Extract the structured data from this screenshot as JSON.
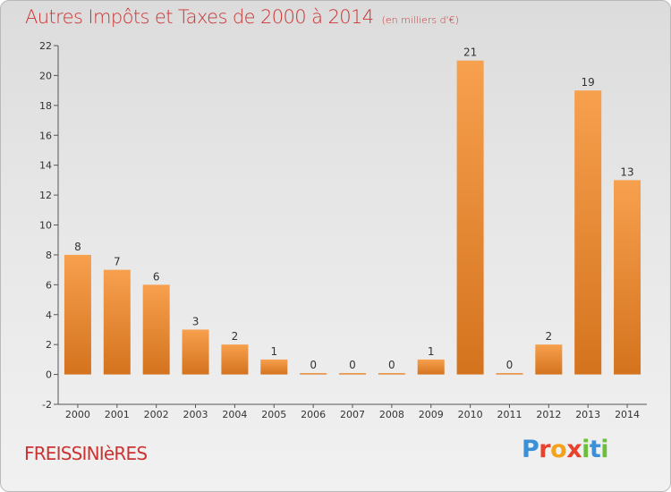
{
  "header": {
    "title": "Autres Impôts et Taxes de 2000 à 2014",
    "unit": "(en milliers d'€)"
  },
  "footer": {
    "commune": "FREISSINIèRES",
    "logo_letters": [
      {
        "char": "P",
        "color": "#3a8fd6"
      },
      {
        "char": "r",
        "color": "#e8412c"
      },
      {
        "char": "o",
        "color": "#f5a21a"
      },
      {
        "char": "x",
        "color": "#e8412c"
      },
      {
        "char": "i",
        "color": "#6cbf3d"
      },
      {
        "char": "t",
        "color": "#3a8fd6"
      },
      {
        "char": "i",
        "color": "#6cbf3d"
      }
    ]
  },
  "chart_data": {
    "type": "bar",
    "title": "Autres Impôts et Taxes de 2000 à 2014",
    "subtitle": "(en milliers d'€)",
    "xlabel": "",
    "ylabel": "",
    "categories": [
      "2000",
      "2001",
      "2002",
      "2003",
      "2004",
      "2005",
      "2006",
      "2007",
      "2008",
      "2009",
      "2010",
      "2011",
      "2012",
      "2013",
      "2014"
    ],
    "values": [
      8,
      7,
      6,
      3,
      2,
      1,
      0,
      0,
      0,
      1,
      21,
      0,
      2,
      19,
      13
    ],
    "data_labels": [
      "8",
      "7",
      "6",
      "3",
      "2",
      "1",
      "0",
      "0",
      "0",
      "1",
      "21",
      "0",
      "2",
      "19",
      "13"
    ],
    "y_ticks": [
      -2,
      0,
      2,
      4,
      6,
      8,
      10,
      12,
      14,
      16,
      18,
      20,
      22
    ],
    "ylim": [
      -2,
      22
    ],
    "grid": false,
    "legend": "none",
    "colors": {
      "bar_light": "#f7a04e",
      "bar_dark": "#d4731e",
      "text": "#333333",
      "title": "#cc3333"
    }
  }
}
